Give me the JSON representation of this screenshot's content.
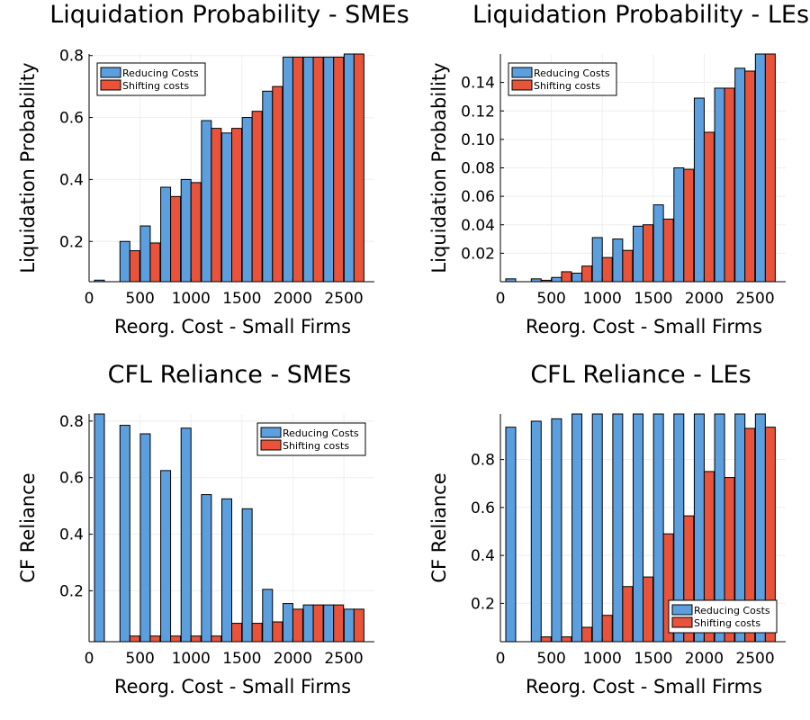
{
  "colors": {
    "series1": "#5b9fdf",
    "series2": "#e8533a"
  },
  "chart_data": [
    {
      "type": "bar",
      "title": "Liquidation Probability - SMEs",
      "xlabel": "Reorg. Cost - Small Firms",
      "ylabel": "Liquidation Probability",
      "x": [
        150,
        400,
        600,
        800,
        1000,
        1200,
        1400,
        1600,
        1800,
        2000,
        2200,
        2400,
        2600
      ],
      "series": [
        {
          "name": "Reducing Costs",
          "values": [
            0.075,
            0.2,
            0.25,
            0.375,
            0.4,
            0.59,
            0.55,
            0.6,
            0.685,
            0.795,
            0.795,
            0.795,
            0.805
          ]
        },
        {
          "name": "Shifting costs",
          "values": [
            0.07,
            0.17,
            0.195,
            0.345,
            0.39,
            0.565,
            0.565,
            0.62,
            0.7,
            0.795,
            0.795,
            0.795,
            0.805
          ]
        }
      ],
      "xlim": [
        0,
        2800
      ],
      "ylim": [
        0.07,
        0.805
      ],
      "xticks": [
        0,
        500,
        1000,
        1500,
        2000,
        2500
      ],
      "xtick_labels": [
        "0",
        "500",
        "1000",
        "1500",
        "2000",
        "2500"
      ],
      "yticks": [
        0.2,
        0.4,
        0.6,
        0.8
      ],
      "ytick_labels": [
        "0.2",
        "0.4",
        "0.6",
        "0.8"
      ],
      "legend": "top-left",
      "grid": true
    },
    {
      "type": "bar",
      "title": "Liquidation Probability - LEs",
      "xlabel": "Reorg. Cost - Small Firms",
      "ylabel": "Liquidation Probability",
      "x": [
        150,
        400,
        600,
        800,
        1000,
        1200,
        1400,
        1600,
        1800,
        2000,
        2200,
        2400,
        2600
      ],
      "series": [
        {
          "name": "Reducing Costs",
          "values": [
            0.002,
            0.002,
            0.003,
            0.006,
            0.031,
            0.03,
            0.039,
            0.054,
            0.08,
            0.129,
            0.136,
            0.15,
            0.16
          ]
        },
        {
          "name": "Shifting costs",
          "values": [
            0.0,
            0.001,
            0.007,
            0.011,
            0.017,
            0.022,
            0.04,
            0.044,
            0.079,
            0.105,
            0.136,
            0.148,
            0.16
          ]
        }
      ],
      "xlim": [
        0,
        2800
      ],
      "ylim": [
        0.0,
        0.16
      ],
      "xticks": [
        0,
        500,
        1000,
        1500,
        2000,
        2500
      ],
      "xtick_labels": [
        "0",
        "500",
        "1000",
        "1500",
        "2000",
        "2500"
      ],
      "yticks": [
        0.02,
        0.04,
        0.06,
        0.08,
        0.1,
        0.12,
        0.14
      ],
      "ytick_labels": [
        "0.02",
        "0.04",
        "0.06",
        "0.08",
        "0.10",
        "0.12",
        "0.14"
      ],
      "legend": "top-left",
      "grid": true
    },
    {
      "type": "bar",
      "title": "CFL Reliance - SMEs",
      "xlabel": "Reorg. Cost - Small Firms",
      "ylabel": "CF Reliance",
      "x": [
        150,
        400,
        600,
        800,
        1000,
        1200,
        1400,
        1600,
        1800,
        2000,
        2200,
        2400,
        2600
      ],
      "series": [
        {
          "name": "Reducing Costs",
          "values": [
            0.825,
            0.785,
            0.755,
            0.625,
            0.775,
            0.54,
            0.525,
            0.49,
            0.205,
            0.155,
            0.15,
            0.15,
            0.135
          ]
        },
        {
          "name": "Shifting costs",
          "values": [
            0.0,
            0.04,
            0.04,
            0.04,
            0.04,
            0.04,
            0.085,
            0.085,
            0.09,
            0.135,
            0.15,
            0.15,
            0.135
          ]
        }
      ],
      "xlim": [
        0,
        2800
      ],
      "ylim": [
        0.02,
        0.825
      ],
      "xticks": [
        0,
        500,
        1000,
        1500,
        2000,
        2500
      ],
      "xtick_labels": [
        "0",
        "500",
        "1000",
        "1500",
        "2000",
        "2500"
      ],
      "yticks": [
        0.2,
        0.4,
        0.6,
        0.8
      ],
      "ytick_labels": [
        "0.2",
        "0.4",
        "0.6",
        "0.8"
      ],
      "legend": "top-right",
      "grid": true
    },
    {
      "type": "bar",
      "title": "CFL Reliance - LEs",
      "xlabel": "Reorg. Cost - Small Firms",
      "ylabel": "CF Reliance",
      "x": [
        150,
        400,
        600,
        800,
        1000,
        1200,
        1400,
        1600,
        1800,
        2000,
        2200,
        2400,
        2600
      ],
      "series": [
        {
          "name": "Reducing Costs",
          "values": [
            0.935,
            0.96,
            0.97,
            0.99,
            0.99,
            0.99,
            0.99,
            0.99,
            0.99,
            0.99,
            0.99,
            0.99,
            0.99
          ]
        },
        {
          "name": "Shifting costs",
          "values": [
            0.0,
            0.06,
            0.06,
            0.1,
            0.15,
            0.27,
            0.31,
            0.49,
            0.565,
            0.75,
            0.725,
            0.93,
            0.935
          ]
        }
      ],
      "xlim": [
        0,
        2800
      ],
      "ylim": [
        0.04,
        0.99
      ],
      "xticks": [
        0,
        500,
        1000,
        1500,
        2000,
        2500
      ],
      "xtick_labels": [
        "0",
        "500",
        "1000",
        "1500",
        "2000",
        "2500"
      ],
      "yticks": [
        0.2,
        0.4,
        0.6,
        0.8
      ],
      "ytick_labels": [
        "0.2",
        "0.4",
        "0.6",
        "0.8"
      ],
      "legend": "bottom-right",
      "grid": true
    }
  ]
}
